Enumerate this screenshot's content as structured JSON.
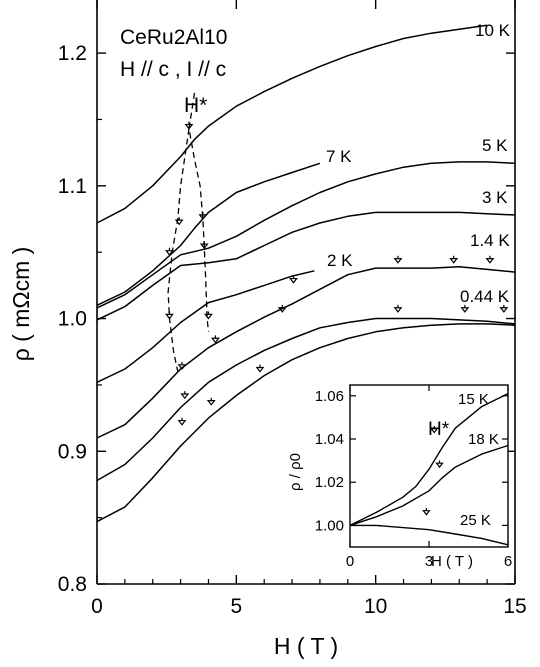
{
  "chart_data": [
    {
      "type": "line",
      "xlabel": "H ( T )",
      "ylabel": "ρ ( mΩcm )",
      "xlim": [
        0,
        15
      ],
      "ylim": [
        0.8,
        1.24
      ],
      "xticks": [
        0,
        5,
        10,
        15
      ],
      "yticks": [
        0.8,
        0.9,
        1.0,
        1.1,
        1.2
      ],
      "ytick_labels": [
        "0.8",
        "0.9",
        "1.0",
        "1.1",
        "1.2"
      ],
      "grid": false,
      "annotation_lines": [
        "CeRu2Al10",
        "H // c ,  I // c"
      ],
      "hstar_label": "H*",
      "series": [
        {
          "name": "10 K",
          "x": [
            0,
            1,
            2,
            3,
            3.5,
            4,
            5,
            6,
            7,
            8,
            9,
            10,
            11,
            12,
            13,
            14
          ],
          "y": [
            1.072,
            1.083,
            1.1,
            1.122,
            1.135,
            1.145,
            1.16,
            1.171,
            1.181,
            1.19,
            1.198,
            1.205,
            1.211,
            1.215,
            1.218,
            1.221
          ]
        },
        {
          "name": "7 K",
          "x": [
            0,
            1,
            2,
            3,
            3.5,
            4,
            5,
            6,
            7,
            8
          ],
          "y": [
            1.01,
            1.02,
            1.036,
            1.055,
            1.068,
            1.08,
            1.095,
            1.103,
            1.11,
            1.117
          ]
        },
        {
          "name": "5 K",
          "x": [
            0,
            1,
            2,
            3,
            4,
            5,
            6,
            7,
            8,
            9,
            10,
            11,
            12,
            13,
            14,
            15
          ],
          "y": [
            1.008,
            1.018,
            1.033,
            1.048,
            1.053,
            1.062,
            1.074,
            1.085,
            1.095,
            1.103,
            1.109,
            1.114,
            1.117,
            1.118,
            1.118,
            1.117
          ]
        },
        {
          "name": "3 K",
          "x": [
            0,
            1,
            2,
            3,
            4,
            5,
            6,
            7,
            8,
            9,
            10,
            11,
            12,
            13,
            14,
            15
          ],
          "y": [
            0.999,
            1.009,
            1.025,
            1.04,
            1.042,
            1.045,
            1.055,
            1.065,
            1.072,
            1.077,
            1.08,
            1.08,
            1.08,
            1.08,
            1.079,
            1.078
          ]
        },
        {
          "name": "2 K",
          "x": [
            0,
            1,
            2,
            3,
            4,
            5,
            6,
            7,
            7.8
          ],
          "y": [
            0.952,
            0.962,
            0.978,
            0.997,
            1.012,
            1.018,
            1.025,
            1.032,
            1.036
          ]
        },
        {
          "name": "1.4 K",
          "x": [
            0,
            1,
            2,
            3,
            4,
            5,
            6,
            7,
            8,
            9,
            10,
            11,
            12,
            13,
            14,
            15
          ],
          "y": [
            0.91,
            0.92,
            0.94,
            0.962,
            0.978,
            0.99,
            1.001,
            1.011,
            1.022,
            1.033,
            1.038,
            1.038,
            1.038,
            1.039,
            1.037,
            1.035
          ]
        },
        {
          "name": "0.44 K",
          "x": [
            0,
            1,
            2,
            3,
            4,
            5,
            6,
            7,
            8,
            9,
            10,
            11,
            12,
            13,
            14,
            15
          ],
          "y": [
            0.878,
            0.89,
            0.91,
            0.933,
            0.952,
            0.965,
            0.976,
            0.985,
            0.993,
            0.997,
            1.0,
            1.0,
            1.0,
            0.999,
            0.998,
            0.996
          ]
        },
        {
          "name": "",
          "x": [
            0,
            1,
            2,
            3,
            4,
            5,
            6,
            7,
            8,
            9,
            10,
            11,
            12,
            13,
            14,
            15
          ],
          "y": [
            0.847,
            0.858,
            0.88,
            0.904,
            0.925,
            0.942,
            0.957,
            0.969,
            0.978,
            0.985,
            0.99,
            0.993,
            0.995,
            0.996,
            0.996,
            0.995
          ]
        }
      ],
      "arrow_markers": [
        [
          3.3,
          1.143
        ],
        [
          3.8,
          1.075
        ],
        [
          3.85,
          1.053
        ],
        [
          2.95,
          1.071
        ],
        [
          2.6,
          1.048
        ],
        [
          7.05,
          1.027
        ],
        [
          6.65,
          1.005
        ],
        [
          2.6,
          1.0
        ],
        [
          4.0,
          1.0
        ],
        [
          3.05,
          0.962
        ],
        [
          4.25,
          0.982
        ],
        [
          5.85,
          0.96
        ],
        [
          3.15,
          0.94
        ],
        [
          4.1,
          0.935
        ],
        [
          3.05,
          0.92
        ],
        [
          10.8,
          1.042
        ],
        [
          12.8,
          1.042
        ],
        [
          14.1,
          1.042
        ],
        [
          10.8,
          1.005
        ],
        [
          13.2,
          1.005
        ],
        [
          14.6,
          1.005
        ]
      ],
      "hstar_path": [
        [
          3.5,
          1.17
        ],
        [
          3.3,
          1.143
        ],
        [
          3.5,
          1.12
        ],
        [
          3.7,
          1.1
        ],
        [
          3.8,
          1.075
        ],
        [
          3.85,
          1.053
        ],
        [
          3.9,
          1.03
        ],
        [
          3.95,
          1.0
        ],
        [
          4.0,
          0.99
        ]
      ],
      "hstar_path_left": [
        [
          3.3,
          1.143
        ],
        [
          3.0,
          1.1
        ],
        [
          2.9,
          1.075
        ],
        [
          2.7,
          1.05
        ],
        [
          2.55,
          1.02
        ],
        [
          2.6,
          1.0
        ],
        [
          2.75,
          0.975
        ],
        [
          2.9,
          0.96
        ]
      ]
    },
    {
      "type": "line",
      "xlabel": "H ( T )",
      "ylabel": "ρ / ρ0",
      "xlim": [
        0,
        6
      ],
      "ylim": [
        0.99,
        1.065
      ],
      "xticks": [
        0,
        3,
        6
      ],
      "yticks": [
        1.0,
        1.02,
        1.04,
        1.06
      ],
      "ytick_labels": [
        "1.00",
        "1.02",
        "1.04",
        "1.06"
      ],
      "hstar_label": "H*",
      "series": [
        {
          "name": "15 K",
          "x": [
            0,
            1,
            2,
            2.5,
            3,
            3.5,
            4,
            5,
            6
          ],
          "y": [
            1.0,
            1.006,
            1.013,
            1.018,
            1.026,
            1.036,
            1.045,
            1.055,
            1.061
          ]
        },
        {
          "name": "18 K",
          "x": [
            0,
            1,
            2,
            3,
            3.5,
            4,
            5,
            6
          ],
          "y": [
            1.0,
            1.004,
            1.009,
            1.016,
            1.022,
            1.027,
            1.033,
            1.037
          ]
        },
        {
          "name": "25 K",
          "x": [
            0,
            1,
            2,
            3,
            4,
            5,
            6
          ],
          "y": [
            1.0,
            1.0,
            0.999,
            0.998,
            0.996,
            0.994,
            0.991
          ]
        }
      ],
      "arrow_markers": [
        [
          3.2,
          1.043
        ],
        [
          3.4,
          1.027
        ],
        [
          2.9,
          1.005
        ]
      ]
    }
  ]
}
